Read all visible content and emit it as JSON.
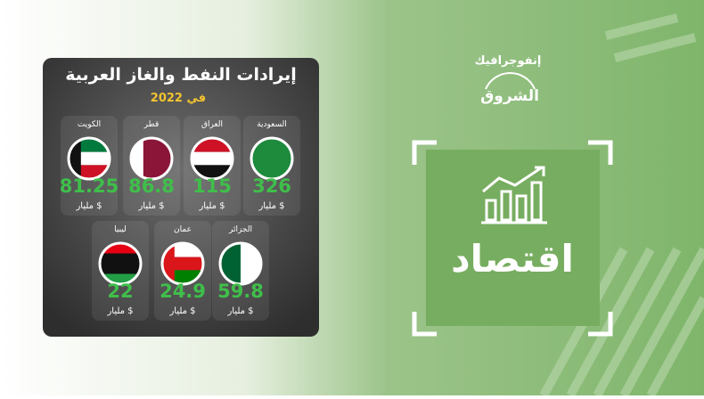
{
  "infographic": {
    "title": "إيرادات النفط والغاز العربية",
    "subtitle": "في 2022",
    "unit": "مليار $",
    "items": [
      {
        "country": "السعودية",
        "value": 326
      },
      {
        "country": "العراق",
        "value": 115
      },
      {
        "country": "قطر",
        "value": 86.8
      },
      {
        "country": "الكويت",
        "value": 81.25
      },
      {
        "country": "الجزائر",
        "value": 59.8
      },
      {
        "country": "عمان",
        "value": 24.9
      },
      {
        "country": "ليبيا",
        "value": 22
      }
    ]
  },
  "brand": {
    "label": "إنفوجرافيك",
    "name": "الشروق"
  },
  "section": "اقتصاد"
}
